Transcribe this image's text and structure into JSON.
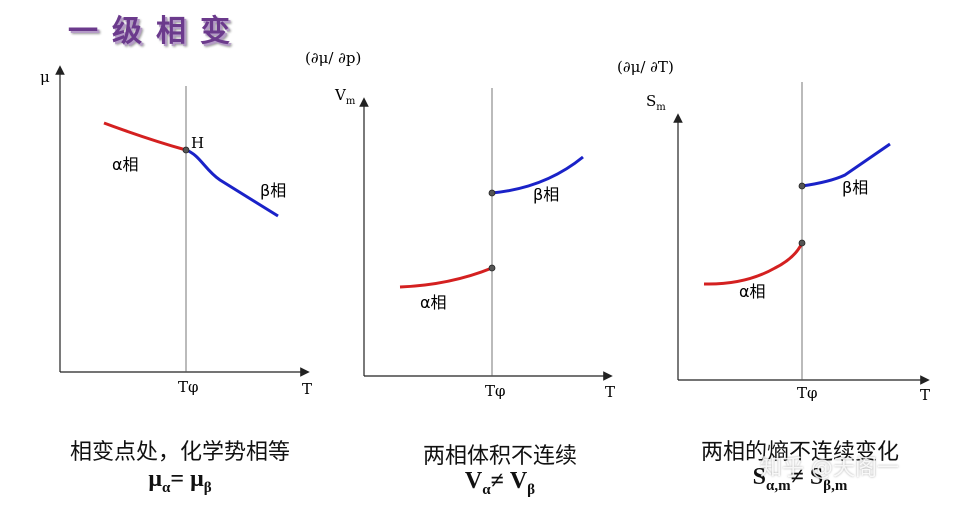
{
  "title": "一级相变",
  "panels": [
    {
      "id": "mu",
      "y_axis": "μ",
      "x_axis": "T",
      "transition_label": "Tφ",
      "point_label": "H",
      "alpha_label": "α相",
      "beta_label": "β相",
      "caption": "相变点处，化学势相等",
      "formula": {
        "lhs": "μ",
        "lhs_sub": "α",
        "op": "= ",
        "rhs": "μ",
        "rhs_sub": "β"
      }
    },
    {
      "id": "volume",
      "derivative": "(∂μ/ ∂p)",
      "y_axis": "Vm",
      "x_axis": "T",
      "transition_label": "Tφ",
      "alpha_label": "α相",
      "beta_label": "β相",
      "caption": "两相体积不连续",
      "formula": {
        "lhs": "V",
        "lhs_sub": "α",
        "op": "≠ ",
        "rhs": "V",
        "rhs_sub": "β"
      }
    },
    {
      "id": "entropy",
      "derivative": "(∂μ/ ∂T)",
      "y_axis": "Sm",
      "x_axis": "T",
      "transition_label": "Tφ",
      "alpha_label": "α相",
      "beta_label": "β相",
      "caption": "两相的熵不连续变化",
      "formula": {
        "lhs": "S",
        "lhs_sub": "α,m",
        "op": "≠ ",
        "rhs": "S",
        "rhs_sub": "β,m"
      }
    }
  ],
  "watermark": "知乎 @天阁一",
  "colors": {
    "alpha_curve": "#d42020",
    "beta_curve": "#1a22c8",
    "axis": "#222222",
    "title": "#6b3a8c"
  }
}
